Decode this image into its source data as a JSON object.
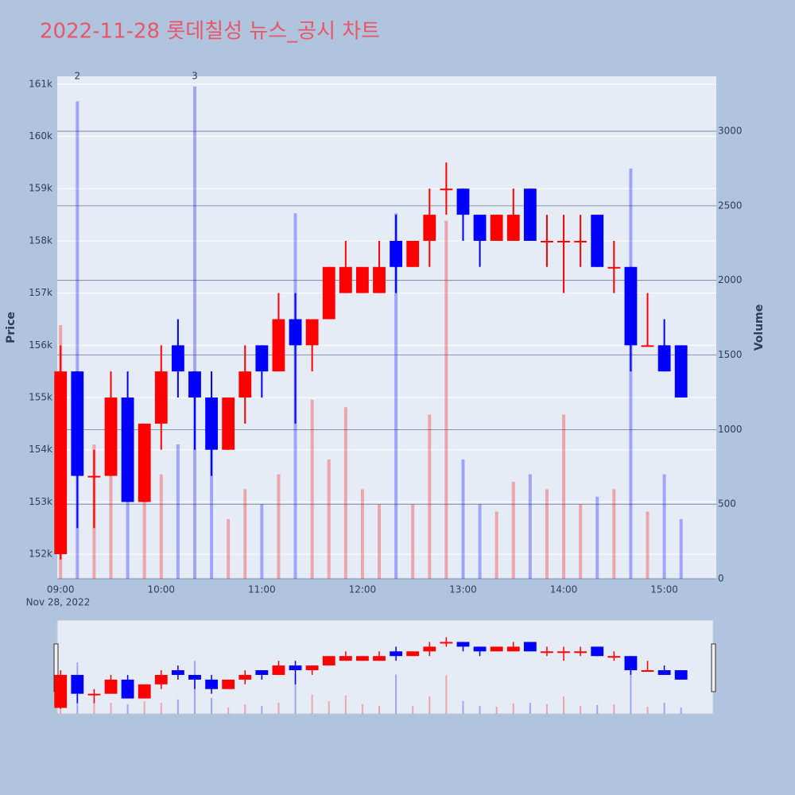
{
  "chart_data": {
    "type": "candlestick",
    "title": "2022-11-28 롯데칠성 뉴스_공시 차트",
    "x": [
      "2022-11-28 09:00",
      "2022-11-28 09:10",
      "2022-11-28 09:20",
      "2022-11-28 09:30",
      "2022-11-28 09:40",
      "2022-11-28 09:50",
      "2022-11-28 10:00",
      "2022-11-28 10:10",
      "2022-11-28 10:20",
      "2022-11-28 10:30",
      "2022-11-28 10:40",
      "2022-11-28 10:50",
      "2022-11-28 11:00",
      "2022-11-28 11:10",
      "2022-11-28 11:20",
      "2022-11-28 11:30",
      "2022-11-28 11:40",
      "2022-11-28 11:50",
      "2022-11-28 12:00",
      "2022-11-28 12:10",
      "2022-11-28 12:20",
      "2022-11-28 12:30",
      "2022-11-28 12:40",
      "2022-11-28 12:50",
      "2022-11-28 13:00",
      "2022-11-28 13:10",
      "2022-11-28 13:20",
      "2022-11-28 13:30",
      "2022-11-28 13:40",
      "2022-11-28 13:50",
      "2022-11-28 14:00",
      "2022-11-28 14:10",
      "2022-11-28 14:20",
      "2022-11-28 14:30",
      "2022-11-28 14:40",
      "2022-11-28 14:50",
      "2022-11-28 15:00",
      "2022-11-28 15:10"
    ],
    "open": [
      152000,
      155500,
      153500,
      153500,
      155000,
      153000,
      154500,
      156000,
      155500,
      155000,
      154000,
      155000,
      156000,
      155500,
      156500,
      156000,
      156500,
      157000,
      157000,
      157000,
      158000,
      157500,
      158000,
      159000,
      159000,
      158500,
      158000,
      158000,
      159000,
      158000,
      158000,
      158000,
      158500,
      157500,
      157500,
      156000,
      156000,
      156000
    ],
    "high": [
      156000,
      155500,
      154000,
      155500,
      155500,
      154500,
      156000,
      156500,
      155500,
      155500,
      155000,
      156000,
      156000,
      157000,
      157000,
      156500,
      157500,
      158000,
      157500,
      158000,
      158500,
      158000,
      159000,
      159500,
      159000,
      158500,
      158500,
      159000,
      159000,
      158500,
      158500,
      158500,
      158500,
      158000,
      157500,
      157000,
      156500,
      156000
    ],
    "low": [
      151900,
      152500,
      152500,
      153500,
      153000,
      153000,
      154000,
      155000,
      154000,
      153500,
      154000,
      154500,
      155000,
      155500,
      154500,
      155500,
      156500,
      157000,
      157000,
      157000,
      157000,
      157500,
      157500,
      158500,
      158000,
      157500,
      158000,
      158000,
      158000,
      157500,
      157000,
      157500,
      157500,
      157000,
      155500,
      156000,
      155500,
      155000
    ],
    "close": [
      155500,
      153500,
      153500,
      155000,
      153000,
      154500,
      155500,
      155500,
      155000,
      154000,
      155000,
      155500,
      155500,
      156500,
      156000,
      156500,
      157500,
      157500,
      157500,
      157500,
      157500,
      158000,
      158500,
      159000,
      158500,
      158000,
      158500,
      158500,
      158000,
      158000,
      158000,
      158000,
      157500,
      157500,
      156000,
      156000,
      155500,
      155000
    ],
    "volume": [
      1700,
      3200,
      900,
      700,
      600,
      800,
      700,
      900,
      3300,
      1000,
      400,
      600,
      500,
      700,
      2450,
      1200,
      800,
      1150,
      600,
      500,
      2450,
      500,
      1100,
      2400,
      800,
      500,
      450,
      650,
      700,
      600,
      1100,
      500,
      550,
      600,
      2750,
      450,
      700,
      400
    ],
    "increasing_color": "#ff0000",
    "decreasing_color": "#0000ff",
    "xlim": [
      "2022-11-28 08:58",
      "2022-11-28 15:31"
    ],
    "xticks": [
      {
        "value": "2022-11-28 09:00",
        "label": "09:00"
      },
      {
        "value": "2022-11-28 10:00",
        "label": "10:00"
      },
      {
        "value": "2022-11-28 11:00",
        "label": "11:00"
      },
      {
        "value": "2022-11-28 12:00",
        "label": "12:00"
      },
      {
        "value": "2022-11-28 13:00",
        "label": "13:00"
      },
      {
        "value": "2022-11-28 14:00",
        "label": "14:00"
      },
      {
        "value": "2022-11-28 15:00",
        "label": "15:00"
      }
    ],
    "x_date_label": "Nov 28, 2022",
    "ylabel": "Price",
    "ylim": [
      151530,
      161150
    ],
    "yticks": [
      {
        "value": 152000,
        "label": "152k"
      },
      {
        "value": 153000,
        "label": "153k"
      },
      {
        "value": 154000,
        "label": "154k"
      },
      {
        "value": 155000,
        "label": "155k"
      },
      {
        "value": 156000,
        "label": "156k"
      },
      {
        "value": 157000,
        "label": "157k"
      },
      {
        "value": 158000,
        "label": "158k"
      },
      {
        "value": 159000,
        "label": "159k"
      },
      {
        "value": 160000,
        "label": "160k"
      },
      {
        "value": 161000,
        "label": "161k"
      }
    ],
    "y2label": "Volume",
    "y2lim": [
      0,
      3368
    ],
    "y2ticks": [
      0,
      500,
      1000,
      1500,
      2000,
      2500,
      3000
    ],
    "annotations": [
      {
        "text": "2",
        "x": "2022-11-28 09:10"
      },
      {
        "text": "3",
        "x": "2022-11-28 10:20"
      }
    ],
    "grid": true
  }
}
